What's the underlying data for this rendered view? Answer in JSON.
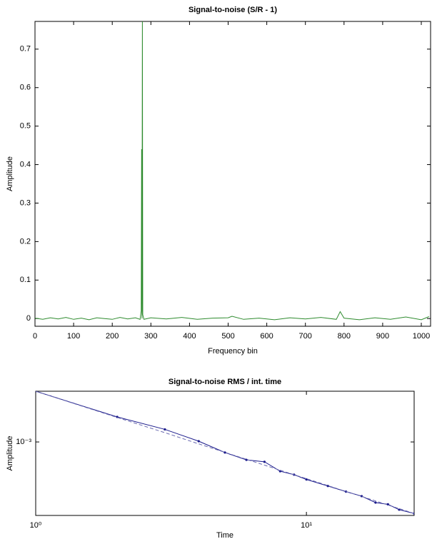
{
  "chart_data": [
    {
      "type": "line",
      "title": "Signal-to-noise (S/R - 1)",
      "x_label": "Frequency bin",
      "y_label": "Amplitude",
      "x": [
        0,
        20,
        40,
        60,
        80,
        100,
        120,
        140,
        160,
        180,
        200,
        220,
        240,
        260,
        272,
        275,
        276,
        277,
        278,
        279,
        282,
        300,
        340,
        380,
        420,
        460,
        500,
        510,
        540,
        580,
        620,
        660,
        700,
        740,
        780,
        790,
        800,
        840,
        880,
        920,
        960,
        1000,
        1020
      ],
      "series": [
        {
          "color": "#2e8b2e",
          "values": [
            0.001,
            -0.002,
            0.002,
            -0.001,
            0.003,
            -0.002,
            0.001,
            -0.003,
            0.002,
            0.0,
            -0.002,
            0.003,
            -0.001,
            0.002,
            -0.002,
            0.02,
            0.44,
            0.0,
            0.8,
            0.01,
            -0.002,
            0.002,
            -0.001,
            0.003,
            -0.002,
            0.001,
            0.002,
            0.006,
            -0.002,
            0.001,
            -0.003,
            0.002,
            -0.001,
            0.003,
            -0.002,
            0.018,
            0.001,
            -0.003,
            0.002,
            -0.002,
            0.004,
            -0.003,
            0.005
          ]
        }
      ],
      "xlim": [
        0,
        1024
      ],
      "ylim": [
        -0.02,
        0.772
      ],
      "xticks": [
        0,
        100,
        200,
        300,
        400,
        500,
        600,
        700,
        800,
        900,
        1000
      ],
      "yticks": [
        0,
        0.1,
        0.2,
        0.3,
        0.4,
        0.5,
        0.6,
        0.7
      ],
      "log": false
    },
    {
      "type": "line",
      "title": "Signal-to-noise RMS / int. time",
      "x_label": "Time",
      "y_label": "Amplitude",
      "x": [
        1,
        2,
        3,
        4,
        5,
        6,
        7,
        8,
        9,
        10,
        12,
        14,
        16,
        18,
        20,
        22,
        25
      ],
      "series": [
        {
          "color": "#1c1c8c",
          "markers": true,
          "dash": false,
          "values": [
            0.00195,
            0.00139,
            0.00118,
            0.00101,
            0.00087,
            0.00079,
            0.00077,
            0.00068,
            0.00065,
            0.00061,
            0.00056,
            0.00052,
            0.00049,
            0.00045,
            0.00044,
            0.00041,
            0.00039
          ]
        },
        {
          "color": "#6a6ab0",
          "markers": false,
          "dash": true,
          "values": [
            0.00195,
            0.00138,
            0.00113,
            0.000975,
            0.000872,
            0.000796,
            0.000737,
            0.000689,
            0.00065,
            0.000617,
            0.000563,
            0.000521,
            0.000488,
            0.00046,
            0.000436,
            0.000416,
            0.00039
          ]
        }
      ],
      "xlim": [
        1,
        25
      ],
      "ylim": [
        0.00038,
        0.00195
      ],
      "xticks": [
        {
          "value": 1,
          "label": "10⁰"
        },
        {
          "value": 10,
          "label": "10¹"
        }
      ],
      "yticks": [
        {
          "value": 0.001,
          "label": "10⁻³"
        }
      ],
      "log": true
    }
  ]
}
